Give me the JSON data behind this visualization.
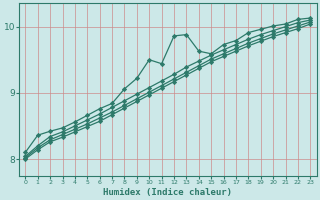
{
  "title": "",
  "xlabel": "Humidex (Indice chaleur)",
  "ylabel": "",
  "xlim": [
    -0.5,
    23.5
  ],
  "ylim": [
    7.75,
    10.35
  ],
  "yticks": [
    8,
    9,
    10
  ],
  "xticks": [
    0,
    1,
    2,
    3,
    4,
    5,
    6,
    7,
    8,
    9,
    10,
    11,
    12,
    13,
    14,
    15,
    16,
    17,
    18,
    19,
    20,
    21,
    22,
    23
  ],
  "bg_color": "#cce8e8",
  "line_color": "#2d7a6a",
  "grid_color": "#cc8888",
  "line_width": 0.9,
  "marker": "D",
  "marker_size": 2.2,
  "series": [
    {
      "x": [
        0,
        1,
        2,
        3,
        4,
        5,
        6,
        7,
        8,
        9,
        10,
        11,
        12,
        13,
        14,
        15,
        16,
        17,
        18,
        19,
        20,
        21,
        22,
        23
      ],
      "y": [
        8.1,
        8.36,
        8.42,
        8.47,
        8.56,
        8.66,
        8.76,
        8.84,
        9.06,
        9.22,
        9.5,
        9.44,
        9.86,
        9.88,
        9.63,
        9.59,
        9.73,
        9.79,
        9.91,
        9.96,
        10.01,
        10.04,
        10.11,
        10.13
      ]
    },
    {
      "x": [
        0,
        1,
        2,
        3,
        4,
        5,
        6,
        7,
        8,
        9,
        10,
        11,
        12,
        13,
        14,
        15,
        16,
        17,
        18,
        19,
        20,
        21,
        22,
        23
      ],
      "y": [
        8.04,
        8.2,
        8.34,
        8.41,
        8.5,
        8.59,
        8.68,
        8.78,
        8.88,
        8.98,
        9.08,
        9.18,
        9.28,
        9.39,
        9.48,
        9.57,
        9.65,
        9.73,
        9.81,
        9.88,
        9.94,
        10.0,
        10.06,
        10.1
      ]
    },
    {
      "x": [
        0,
        1,
        2,
        3,
        4,
        5,
        6,
        7,
        8,
        9,
        10,
        11,
        12,
        13,
        14,
        15,
        16,
        17,
        18,
        19,
        20,
        21,
        22,
        23
      ],
      "y": [
        8.02,
        8.17,
        8.29,
        8.37,
        8.45,
        8.53,
        8.62,
        8.71,
        8.81,
        8.91,
        9.01,
        9.11,
        9.21,
        9.31,
        9.41,
        9.51,
        9.59,
        9.67,
        9.75,
        9.82,
        9.89,
        9.95,
        10.01,
        10.07
      ]
    },
    {
      "x": [
        0,
        1,
        2,
        3,
        4,
        5,
        6,
        7,
        8,
        9,
        10,
        11,
        12,
        13,
        14,
        15,
        16,
        17,
        18,
        19,
        20,
        21,
        22,
        23
      ],
      "y": [
        8.0,
        8.14,
        8.26,
        8.33,
        8.41,
        8.49,
        8.57,
        8.67,
        8.77,
        8.87,
        8.97,
        9.07,
        9.17,
        9.27,
        9.37,
        9.47,
        9.55,
        9.63,
        9.71,
        9.78,
        9.85,
        9.91,
        9.97,
        10.04
      ]
    }
  ]
}
